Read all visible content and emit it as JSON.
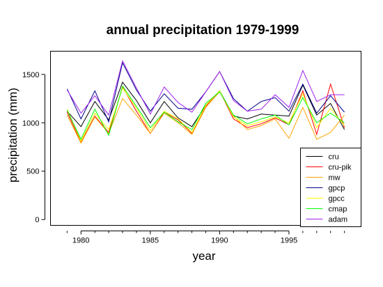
{
  "chart_data": {
    "type": "line",
    "title": "annual precipitation 1979-1999",
    "xlabel": "year",
    "ylabel": "precipitation (mm)",
    "x": [
      1979,
      1980,
      1981,
      1982,
      1983,
      1984,
      1985,
      1986,
      1987,
      1988,
      1989,
      1990,
      1991,
      1992,
      1993,
      1994,
      1995,
      1996,
      1997,
      1998,
      1999
    ],
    "xlim": [
      1977.8,
      2000.2
    ],
    "ylim": [
      -60,
      1740
    ],
    "xticks": [
      1980,
      1985,
      1990,
      1995
    ],
    "yticks": [
      0,
      500,
      1000,
      1500
    ],
    "grid": false,
    "legend_position": "bottom-right",
    "series": [
      {
        "name": "cru",
        "color": "#000000",
        "values": [
          1120,
          960,
          1220,
          1030,
          1420,
          1230,
          1000,
          1220,
          1050,
          960,
          1180,
          1330,
          1070,
          1040,
          1090,
          1080,
          1070,
          1390,
          1080,
          1200,
          930
        ]
      },
      {
        "name": "cru-pik",
        "color": "#ff0000",
        "values": [
          1110,
          800,
          1070,
          900,
          1370,
          1120,
          890,
          1110,
          1030,
          890,
          1170,
          1330,
          1040,
          950,
          990,
          1050,
          980,
          1330,
          880,
          1400,
          950
        ]
      },
      {
        "name": "mw",
        "color": "#ffa500",
        "values": [
          1080,
          790,
          1060,
          890,
          1250,
          1080,
          890,
          1100,
          1000,
          880,
          1160,
          1320,
          1070,
          930,
          970,
          1040,
          840,
          1160,
          830,
          900,
          1080
        ]
      },
      {
        "name": "gpcp",
        "color": "#00008b",
        "values": [
          1350,
          1040,
          1330,
          1010,
          1620,
          1340,
          1120,
          1300,
          1150,
          1140,
          1320,
          1530,
          1250,
          1120,
          1220,
          1260,
          1120,
          1400,
          1100,
          1280,
          1110
        ]
      },
      {
        "name": "gpcc",
        "color": "#ffff00",
        "values": [
          1140,
          810,
          1100,
          930,
          1360,
          1150,
          920,
          1120,
          1040,
          900,
          1180,
          1330,
          1060,
          970,
          1010,
          1060,
          1000,
          1300,
          950,
          1150,
          970
        ]
      },
      {
        "name": "cmap",
        "color": "#00ff00",
        "values": [
          1130,
          830,
          1140,
          870,
          1380,
          1170,
          950,
          1110,
          1010,
          930,
          1200,
          1320,
          1080,
          990,
          1040,
          1080,
          980,
          1260,
          1000,
          1100,
          1000
        ]
      },
      {
        "name": "adam",
        "color": "#a020f0",
        "values": [
          1340,
          1100,
          1280,
          1080,
          1640,
          1360,
          1090,
          1370,
          1210,
          1110,
          1320,
          1530,
          1230,
          1120,
          1140,
          1290,
          1160,
          1540,
          1220,
          1290,
          1290
        ]
      }
    ]
  }
}
